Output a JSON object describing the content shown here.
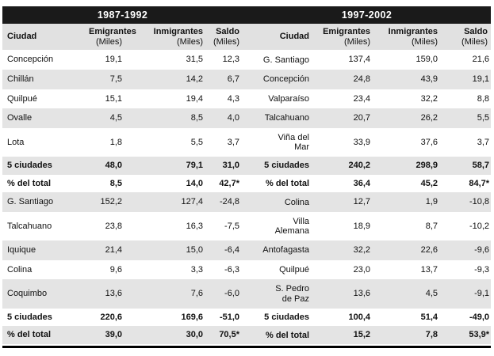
{
  "colors": {
    "band_bg": "#1a1a1a",
    "band_text": "#ffffff",
    "header_bg": "#e1e1e1",
    "shade_bg": "#e4e4e4"
  },
  "periods": [
    "1987-1992",
    "1997-2002"
  ],
  "headers": {
    "ciudad": "Ciudad",
    "emigrantes": "Emigrantes",
    "inmigrantes": "Inmigrantes",
    "saldo": "Saldo",
    "miles": "(Miles)"
  },
  "rows": [
    {
      "bold": false,
      "left": {
        "city": "Concepción",
        "values": [
          "19,1",
          "31,5",
          "12,3"
        ]
      },
      "right": {
        "city": "G. Santiago",
        "values": [
          "137,4",
          "159,0",
          "21,6"
        ]
      }
    },
    {
      "bold": false,
      "left": {
        "city": "Chillán",
        "values": [
          "7,5",
          "14,2",
          "6,7"
        ]
      },
      "right": {
        "city": "Concepción",
        "values": [
          "24,8",
          "43,9",
          "19,1"
        ]
      }
    },
    {
      "bold": false,
      "left": {
        "city": "Quilpué",
        "values": [
          "15,1",
          "19,4",
          "4,3"
        ]
      },
      "right": {
        "city": "Valparaíso",
        "values": [
          "23,4",
          "32,2",
          "8,8"
        ]
      }
    },
    {
      "bold": false,
      "left": {
        "city": "Ovalle",
        "values": [
          "4,5",
          "8,5",
          "4,0"
        ]
      },
      "right": {
        "city": "Talcahuano",
        "values": [
          "20,7",
          "26,2",
          "5,5"
        ]
      }
    },
    {
      "bold": false,
      "left": {
        "city": "Lota",
        "values": [
          "1,8",
          "5,5",
          "3,7"
        ]
      },
      "right": {
        "city": "Viña del\nMar",
        "values": [
          "33,9",
          "37,6",
          "3,7"
        ]
      }
    },
    {
      "bold": true,
      "left": {
        "city": "5 ciudades",
        "values": [
          "48,0",
          "79,1",
          "31,0"
        ]
      },
      "right": {
        "city": "5 ciudades",
        "values": [
          "240,2",
          "298,9",
          "58,7"
        ]
      }
    },
    {
      "bold": true,
      "left": {
        "city": "% del total",
        "values": [
          "8,5",
          "14,0",
          "42,7*"
        ]
      },
      "right": {
        "city": "% del total",
        "values": [
          "36,4",
          "45,2",
          "84,7*"
        ]
      }
    },
    {
      "bold": false,
      "left": {
        "city": "G. Santiago",
        "values": [
          "152,2",
          "127,4",
          "-24,8"
        ]
      },
      "right": {
        "city": "Colina",
        "values": [
          "12,7",
          "1,9",
          "-10,8"
        ]
      }
    },
    {
      "bold": false,
      "left": {
        "city": "Talcahuano",
        "values": [
          "23,8",
          "16,3",
          "-7,5"
        ]
      },
      "right": {
        "city": "Villa\nAlemana",
        "values": [
          "18,9",
          "8,7",
          "-10,2"
        ]
      }
    },
    {
      "bold": false,
      "left": {
        "city": "Iquique",
        "values": [
          "21,4",
          "15,0",
          "-6,4"
        ]
      },
      "right": {
        "city": "Antofagasta",
        "values": [
          "32,2",
          "22,6",
          "-9,6"
        ]
      }
    },
    {
      "bold": false,
      "left": {
        "city": "Colina",
        "values": [
          "9,6",
          "3,3",
          "-6,3"
        ]
      },
      "right": {
        "city": "Quilpué",
        "values": [
          "23,0",
          "13,7",
          "-9,3"
        ]
      }
    },
    {
      "bold": false,
      "left": {
        "city": "Coquimbo",
        "values": [
          "13,6",
          "7,6",
          "-6,0"
        ]
      },
      "right": {
        "city": "S. Pedro\nde Paz",
        "values": [
          "13,6",
          "4,5",
          "-9,1"
        ]
      }
    },
    {
      "bold": true,
      "left": {
        "city": "5 ciudades",
        "values": [
          "220,6",
          "169,6",
          "-51,0"
        ]
      },
      "right": {
        "city": "5 ciudades",
        "values": [
          "100,4",
          "51,4",
          "-49,0"
        ]
      }
    },
    {
      "bold": true,
      "left": {
        "city": "% del total",
        "values": [
          "39,0",
          "30,0",
          "70,5*"
        ]
      },
      "right": {
        "city": "% del total",
        "values": [
          "15,2",
          "7,8",
          "53,9*"
        ]
      }
    }
  ]
}
